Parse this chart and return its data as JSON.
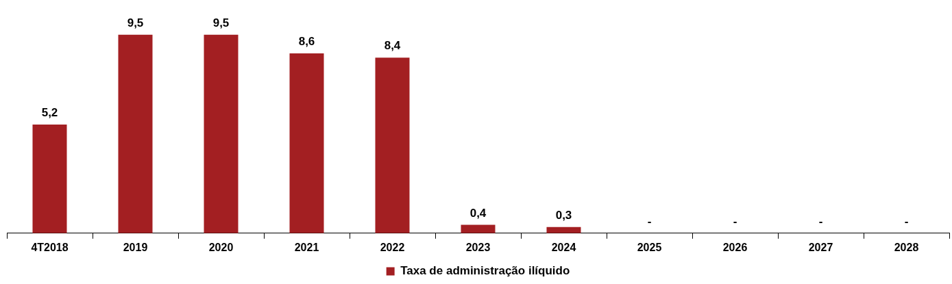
{
  "chart_data": {
    "type": "bar",
    "categories": [
      "4T2018",
      "2019",
      "2020",
      "2021",
      "2022",
      "2023",
      "2024",
      "2025",
      "2026",
      "2027",
      "2028"
    ],
    "series": [
      {
        "name": "Taxa de administração ilíquido",
        "color": "#a31f22",
        "values": [
          5.2,
          9.5,
          9.5,
          8.6,
          8.4,
          0.4,
          0.3,
          0,
          0,
          0,
          0
        ],
        "value_labels": [
          "5,2",
          "9,5",
          "9,5",
          "8,6",
          "8,4",
          "0,4",
          "0,3",
          "-",
          "-",
          "-",
          "-"
        ]
      }
    ],
    "legend": "bottom"
  }
}
